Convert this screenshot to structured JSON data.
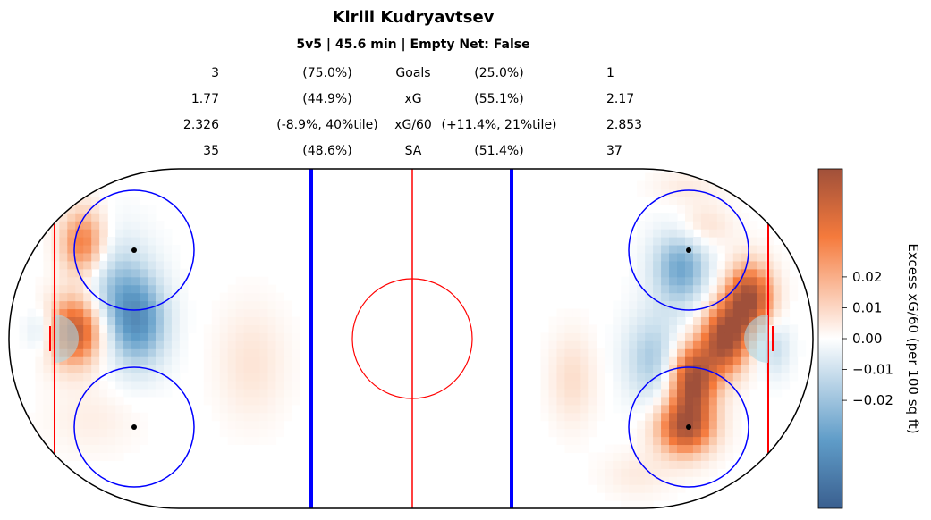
{
  "title": "Kirill Kudryavtsev",
  "subtitle": "5v5 | 45.6 min | Empty Net: False",
  "stats": [
    {
      "label": "Goals",
      "for": "3",
      "for_pct": "(75.0%)",
      "against_pct": "(25.0%)",
      "against": "1"
    },
    {
      "label": "xG",
      "for": "1.77",
      "for_pct": "(44.9%)",
      "against_pct": "(55.1%)",
      "against": "2.17"
    },
    {
      "label": "xG/60",
      "for": "2.326",
      "for_pct": "(-8.9%, 40%tile)",
      "against_pct": "(+11.4%, 21%tile)",
      "against": "2.853"
    },
    {
      "label": "SA",
      "for": "35",
      "for_pct": "(48.6%)",
      "against_pct": "(51.4%)",
      "against": "37"
    }
  ],
  "chart_data": {
    "type": "heatmap",
    "title": "Kirill Kudryavtsev",
    "subtitle": "5v5 | 45.6 min | Empty Net: False",
    "colorbar": {
      "label": "Excess xG/60 (per 100 sq ft)",
      "ticks": [
        0.02,
        0.01,
        0.0,
        -0.01,
        -0.02
      ],
      "tick_labels": [
        "0.02",
        "0.01",
        "0.00",
        "−0.01",
        "−0.02"
      ],
      "range": [
        -0.055,
        0.055
      ],
      "low_color": "#3a5f8f",
      "mid_color": "#ffffff",
      "high_color": "#a0503a"
    },
    "hotspots": [
      {
        "x": -82,
        "y": 24,
        "value": 0.035,
        "sx": 4,
        "sy": 6
      },
      {
        "x": -84,
        "y": 2,
        "value": 0.05,
        "sx": 5,
        "sy": 6
      },
      {
        "x": -74,
        "y": 12,
        "value": -0.02,
        "sx": 6,
        "sy": 10
      },
      {
        "x": -68,
        "y": 4,
        "value": -0.03,
        "sx": 5,
        "sy": 8
      },
      {
        "x": -92,
        "y": 2,
        "value": -0.015,
        "sx": 3,
        "sy": 4
      },
      {
        "x": -40,
        "y": -6,
        "value": 0.008,
        "sx": 6,
        "sy": 10
      },
      {
        "x": -80,
        "y": -20,
        "value": 0.005,
        "sx": 8,
        "sy": 6
      },
      {
        "x": 40,
        "y": -10,
        "value": 0.01,
        "sx": 4,
        "sy": 8
      },
      {
        "x": 67,
        "y": 18,
        "value": -0.03,
        "sx": 5,
        "sy": 7
      },
      {
        "x": 72,
        "y": 28,
        "value": 0.012,
        "sx": 5,
        "sy": 4
      },
      {
        "x": 60,
        "y": -5,
        "value": -0.02,
        "sx": 5,
        "sy": 8
      },
      {
        "x": 84,
        "y": 10,
        "value": 0.055,
        "sx": 4,
        "sy": 6
      },
      {
        "x": 78,
        "y": 0,
        "value": 0.055,
        "sx": 4,
        "sy": 6
      },
      {
        "x": 70,
        "y": -10,
        "value": 0.055,
        "sx": 4,
        "sy": 6
      },
      {
        "x": 68,
        "y": -22,
        "value": 0.05,
        "sx": 5,
        "sy": 5
      },
      {
        "x": 90,
        "y": -2,
        "value": -0.015,
        "sx": 3,
        "sy": 5
      },
      {
        "x": 56,
        "y": -34,
        "value": 0.006,
        "sx": 6,
        "sy": 4
      },
      {
        "x": 68,
        "y": 38,
        "value": 0.006,
        "sx": 6,
        "sy": 3
      }
    ]
  },
  "colors": {
    "rink_outline": "#000000",
    "goal_line": "#ff0000",
    "center_line": "#ff0000",
    "blue_line": "#0000ff",
    "faceoff_circle": "#0000ff",
    "center_circle": "#ff0000",
    "crease": "#add8e6"
  }
}
